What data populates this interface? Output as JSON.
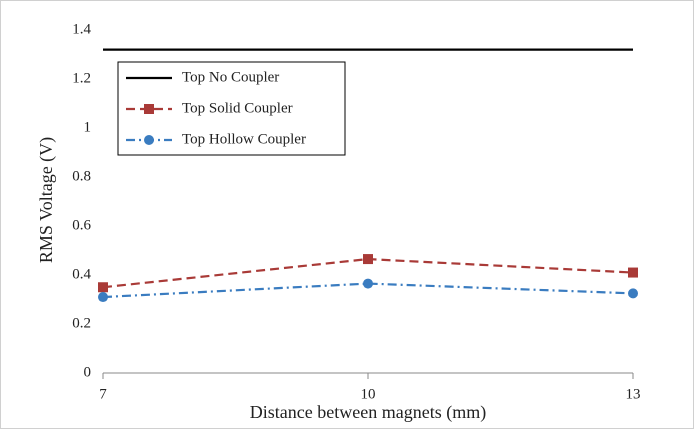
{
  "chart_data": {
    "type": "line",
    "x_label": "Distance between magnets (mm)",
    "y_label": "RMS Voltage (V)",
    "x": [
      7,
      10,
      13
    ],
    "xlim": [
      7,
      13
    ],
    "xticks": [
      7,
      10,
      13
    ],
    "ylim": [
      0,
      1.4
    ],
    "yticks": [
      0,
      0.2,
      0.4,
      0.6,
      0.8,
      1,
      1.2,
      1.4
    ],
    "legend": "upper-left",
    "series": [
      {
        "name": "Top No Coupler",
        "color": "#000000",
        "dash": "solid",
        "marker": "none",
        "values": [
          1.32,
          1.32,
          1.32
        ]
      },
      {
        "name": "Top Solid Coupler",
        "color": "#a93a37",
        "dash": "dashed",
        "marker": "square",
        "values": [
          0.35,
          0.465,
          0.41
        ]
      },
      {
        "name": "Top Hollow Coupler",
        "color": "#3a7cc0",
        "dash": "dash-dot",
        "marker": "circle",
        "values": [
          0.31,
          0.365,
          0.325
        ]
      }
    ]
  }
}
